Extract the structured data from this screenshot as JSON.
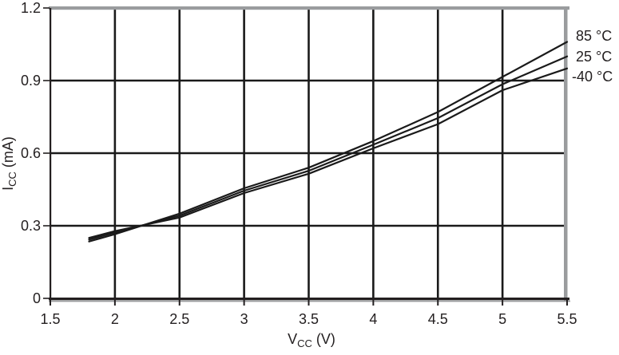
{
  "chart_data": {
    "type": "line",
    "title": "",
    "xlabel": {
      "base": "V",
      "sub": "CC",
      "unit": " (V)"
    },
    "ylabel": {
      "base": "I",
      "sub": "CC",
      "unit": " (mA)"
    },
    "xlim": [
      1.5,
      5.5
    ],
    "ylim": [
      0,
      1.2
    ],
    "x_ticks": [
      "1.5",
      "2",
      "2.5",
      "3",
      "3.5",
      "4",
      "4.5",
      "5",
      "5.5"
    ],
    "x_tick_values": [
      1.5,
      2,
      2.5,
      3,
      3.5,
      4,
      4.5,
      5,
      5.5
    ],
    "y_ticks": [
      "0",
      "0.3",
      "0.6",
      "0.9",
      "1.2"
    ],
    "y_tick_values": [
      0,
      0.3,
      0.6,
      0.9,
      1.2
    ],
    "grid": true,
    "legend_position": "right-outside",
    "x": [
      1.8,
      2.0,
      2.5,
      3.0,
      3.5,
      4.0,
      4.5,
      5.0,
      5.5
    ],
    "series": [
      {
        "name": "85 °C",
        "values": [
          0.235,
          0.265,
          0.35,
          0.455,
          0.54,
          0.65,
          0.77,
          0.915,
          1.06
        ]
      },
      {
        "name": "25 °C",
        "values": [
          0.243,
          0.272,
          0.342,
          0.445,
          0.527,
          0.635,
          0.745,
          0.885,
          1.0
        ]
      },
      {
        "name": "-40 °C",
        "values": [
          0.25,
          0.278,
          0.334,
          0.435,
          0.515,
          0.62,
          0.72,
          0.86,
          0.95
        ]
      }
    ]
  },
  "colors": {
    "line": "#1a1a1a",
    "grid": "#1a1a1a",
    "frame_gray": "#9a9c9e",
    "axis_black": "#231f20",
    "text": "#231f20",
    "background": "#ffffff"
  }
}
